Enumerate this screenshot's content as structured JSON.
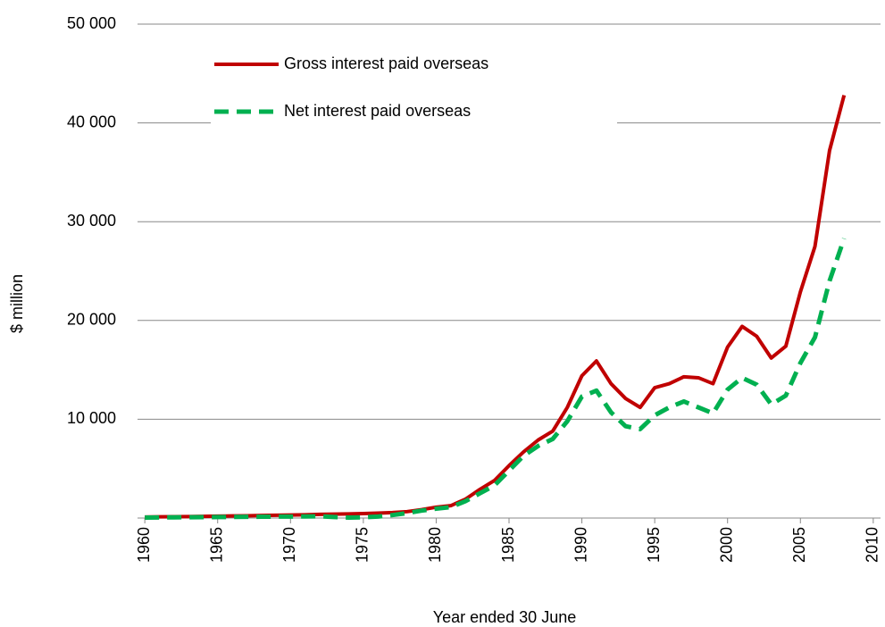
{
  "chart_data": {
    "type": "line",
    "xlabel": "Year ended 30 June",
    "ylabel": "$ million",
    "x": [
      1960,
      1961,
      1962,
      1963,
      1964,
      1965,
      1966,
      1967,
      1968,
      1969,
      1970,
      1971,
      1972,
      1973,
      1974,
      1975,
      1976,
      1977,
      1978,
      1979,
      1980,
      1981,
      1982,
      1983,
      1984,
      1985,
      1986,
      1987,
      1988,
      1989,
      1990,
      1991,
      1992,
      1993,
      1994,
      1995,
      1996,
      1997,
      1998,
      1999,
      2000,
      2001,
      2002,
      2003,
      2004,
      2005,
      2006,
      2007,
      2008
    ],
    "series": [
      {
        "name": "Gross interest paid overseas",
        "color": "#c00000",
        "dashed": false,
        "values": [
          100,
          120,
          140,
          150,
          170,
          190,
          210,
          230,
          260,
          280,
          300,
          330,
          370,
          400,
          420,
          450,
          500,
          550,
          650,
          850,
          1100,
          1250,
          1900,
          2900,
          3800,
          5300,
          6700,
          7900,
          8800,
          11200,
          14400,
          15900,
          13600,
          12100,
          11200,
          13200,
          13600,
          14300,
          14200,
          13600,
          17300,
          19400,
          18400,
          16200,
          17400,
          22900,
          27500,
          37200,
          42800
        ]
      },
      {
        "name": "Net interest paid overseas",
        "color": "#00b050",
        "dashed": true,
        "values": [
          50,
          60,
          70,
          80,
          90,
          100,
          110,
          120,
          130,
          140,
          150,
          160,
          180,
          100,
          50,
          80,
          150,
          300,
          500,
          750,
          950,
          1100,
          1700,
          2500,
          3300,
          4800,
          6300,
          7300,
          8000,
          9800,
          12300,
          12900,
          10700,
          9300,
          9000,
          10400,
          11200,
          11800,
          11200,
          10600,
          13000,
          14200,
          13500,
          11500,
          12400,
          15700,
          18300,
          24000,
          28300
        ]
      }
    ],
    "xlim": [
      1959.5,
      2010.5
    ],
    "xticks": [
      1960,
      1965,
      1970,
      1975,
      1980,
      1985,
      1990,
      1995,
      2000,
      2005,
      2010
    ],
    "ylim": [
      0,
      50000
    ],
    "yticks": [
      {
        "value": 10000,
        "label": "10 000"
      },
      {
        "value": 20000,
        "label": "20 000"
      },
      {
        "value": 30000,
        "label": "30 000"
      },
      {
        "value": 40000,
        "label": "40 000"
      },
      {
        "value": 50000,
        "label": "50 000"
      }
    ],
    "grid": true
  }
}
